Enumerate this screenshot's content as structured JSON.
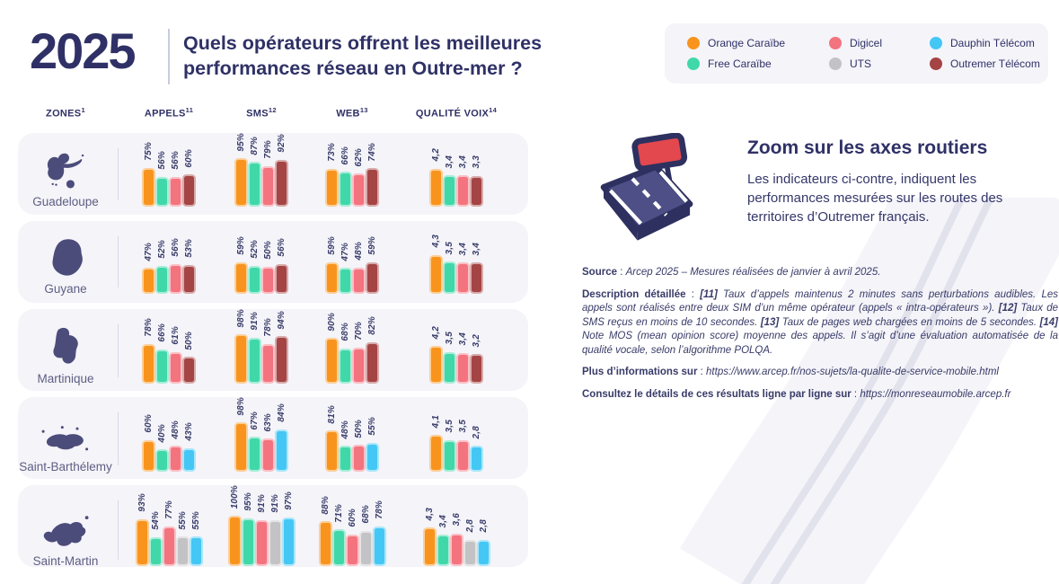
{
  "header": {
    "year": "2025",
    "title_line1": "Quels opérateurs offrent les meilleures",
    "title_line2": "performances réseau en Outre-mer ?"
  },
  "legend": {
    "items": [
      {
        "label": "Orange Caraïbe",
        "color": "#F8941D"
      },
      {
        "label": "Digicel",
        "color": "#F3737F"
      },
      {
        "label": "Dauphin Télécom",
        "color": "#44C7F4"
      },
      {
        "label": "Free Caraïbe",
        "color": "#40D8A9"
      },
      {
        "label": "UTS",
        "color": "#C3C3C6"
      },
      {
        "label": "Outremer Télécom",
        "color": "#A54444"
      }
    ]
  },
  "operator_colors": {
    "Orange Caraïbe": "#F8941D",
    "Free Caraïbe": "#40D8A9",
    "Digicel": "#F3737F",
    "UTS": "#C3C3C6",
    "Dauphin Télécom": "#44C7F4",
    "Outremer Télécom": "#A54444"
  },
  "table": {
    "columns": [
      {
        "label": "ZONES",
        "sup": "1"
      },
      {
        "label": "APPELS",
        "sup": "11"
      },
      {
        "label": "SMS",
        "sup": "12"
      },
      {
        "label": "WEB",
        "sup": "13"
      },
      {
        "label": "QUALITÉ VOIX",
        "sup": "14"
      }
    ]
  },
  "chart_data": {
    "type": "bar",
    "title": "Quels opérateurs offrent les meilleures performances réseau en Outre-mer ?",
    "metrics": [
      "APPELS",
      "SMS",
      "WEB",
      "QUALITÉ VOIX"
    ],
    "units": {
      "appels": "%",
      "sms": "%",
      "web": "%",
      "qualite_voix": "MOS /5"
    },
    "legend": [
      "Orange Caraïbe",
      "Free Caraïbe",
      "Digicel",
      "UTS",
      "Dauphin Télécom",
      "Outremer Télécom"
    ],
    "zones": [
      {
        "zone": "Guadeloupe",
        "operators": [
          "Orange Caraïbe",
          "Free Caraïbe",
          "Digicel",
          "Outremer Télécom"
        ],
        "appels": [
          75,
          56,
          56,
          60
        ],
        "sms": [
          95,
          87,
          79,
          92
        ],
        "web": [
          73,
          66,
          62,
          74
        ],
        "qualite_voix": [
          4.2,
          3.4,
          3.4,
          3.3
        ]
      },
      {
        "zone": "Guyane",
        "operators": [
          "Orange Caraïbe",
          "Free Caraïbe",
          "Digicel",
          "Outremer Télécom"
        ],
        "appels": [
          47,
          52,
          56,
          53
        ],
        "sms": [
          59,
          52,
          50,
          56
        ],
        "web": [
          59,
          47,
          48,
          59
        ],
        "qualite_voix": [
          4.3,
          3.5,
          3.4,
          3.4
        ]
      },
      {
        "zone": "Martinique",
        "operators": [
          "Orange Caraïbe",
          "Free Caraïbe",
          "Digicel",
          "Outremer Télécom"
        ],
        "appels": [
          78,
          66,
          61,
          50
        ],
        "sms": [
          98,
          91,
          78,
          94
        ],
        "web": [
          90,
          68,
          70,
          82
        ],
        "qualite_voix": [
          4.2,
          3.5,
          3.4,
          3.2
        ]
      },
      {
        "zone": "Saint-Barthélemy",
        "operators": [
          "Orange Caraïbe",
          "Free Caraïbe",
          "Digicel",
          "Dauphin Télécom"
        ],
        "appels": [
          60,
          40,
          48,
          43
        ],
        "sms": [
          98,
          67,
          63,
          84
        ],
        "web": [
          81,
          48,
          50,
          55
        ],
        "qualite_voix": [
          4.1,
          3.5,
          3.5,
          2.8
        ]
      },
      {
        "zone": "Saint-Martin",
        "operators": [
          "Orange Caraïbe",
          "Free Caraïbe",
          "Digicel",
          "UTS",
          "Dauphin Télécom"
        ],
        "appels": [
          93,
          54,
          77,
          55,
          55
        ],
        "sms": [
          100,
          95,
          91,
          91,
          97
        ],
        "web": [
          88,
          71,
          60,
          68,
          78
        ],
        "qualite_voix": [
          4.3,
          3.4,
          3.6,
          2.8,
          2.8
        ]
      }
    ]
  },
  "zoom_panel": {
    "title": "Zoom sur les axes routiers",
    "text": "Les indicateurs ci-contre, indiquent les performances mesurées sur les routes des territoires d’Outremer français."
  },
  "info": {
    "source_label": "Source",
    "source_text": "Arcep 2025 – Mesures réalisées de janvier à avril 2025.",
    "description_label": "Description détaillée",
    "description_segments": [
      {
        "marker": "[11]",
        "text": "Taux d’appels maintenus 2 minutes sans perturbations audibles. Les appels sont réalisés entre deux SIM d’un même opérateur (appels « intra-opérateurs »)."
      },
      {
        "marker": "[12]",
        "text": "Taux de SMS reçus en moins de 10 secondes."
      },
      {
        "marker": "[13]",
        "text": "Taux de pages web chargées en moins de 5 secondes."
      },
      {
        "marker": "[14]",
        "text": "Note MOS (mean opinion score) moyenne des appels. Il s’agit d’une évaluation automatisée de la qualité vocale, selon l’algorithme POLQA."
      }
    ],
    "more_info_label": "Plus d’informations sur",
    "more_info_url": "https://www.arcep.fr/nos-sujets/la-qualite-de-service-mobile.html",
    "details_label": "Consultez le détails de ces résultats ligne par ligne sur",
    "details_url": "https://monreseaumobile.arcep.fr"
  }
}
